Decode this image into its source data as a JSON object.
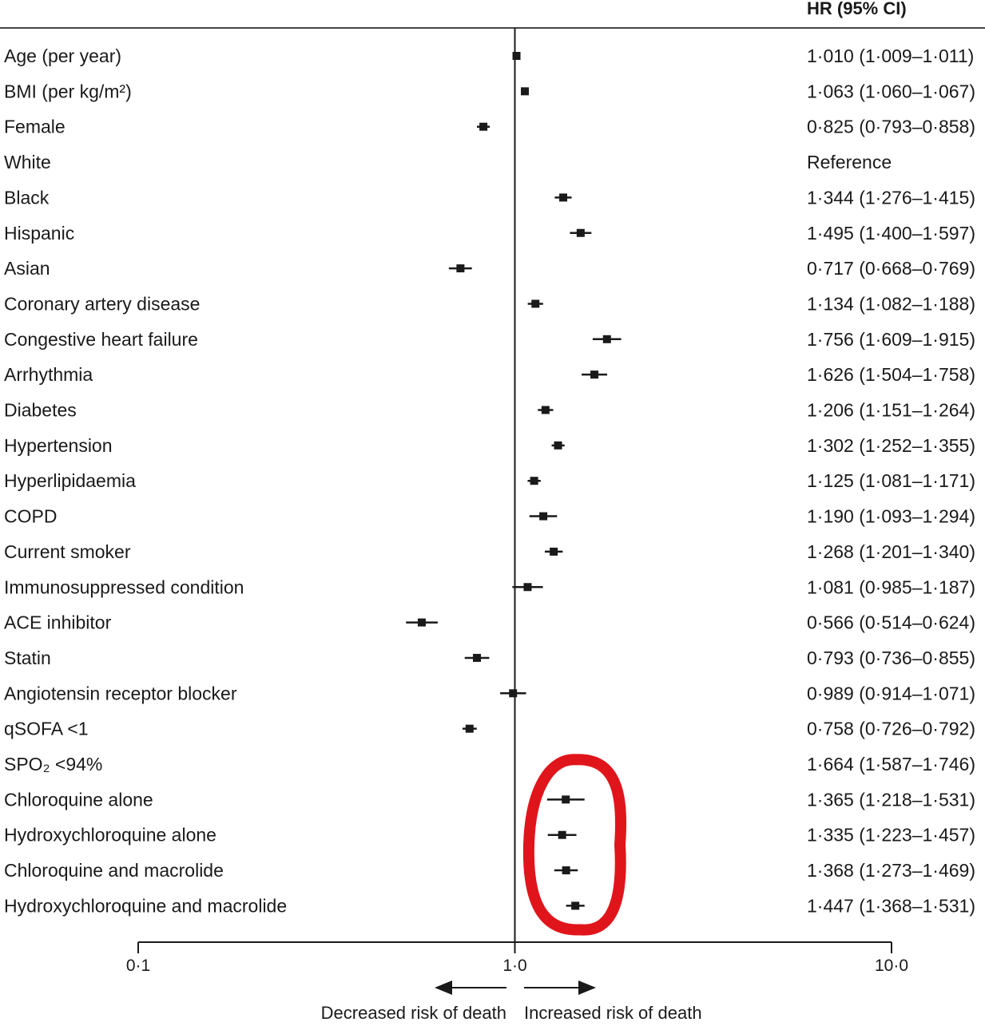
{
  "chart_data": {
    "type": "forest",
    "scale": "log",
    "xlim": [
      0.1,
      10.0
    ],
    "reference_value": 1.0,
    "value_column_header": "HR (95% CI)",
    "ticks": [
      {
        "value": 0.1,
        "label": "0·1"
      },
      {
        "value": 1.0,
        "label": "1·0"
      },
      {
        "value": 10.0,
        "label": "10·0"
      }
    ],
    "direction_labels": {
      "left": "Decreased risk of death",
      "right": "Increased risk of death"
    },
    "rows": [
      {
        "label": "Age (per year)",
        "hr": 1.01,
        "lo": 1.009,
        "hi": 1.011,
        "text": "1·010 (1·009–1·011)"
      },
      {
        "label": "BMI (per kg/m²)",
        "hr": 1.063,
        "lo": 1.06,
        "hi": 1.067,
        "text": "1·063 (1·060–1·067)"
      },
      {
        "label": "Female",
        "hr": 0.825,
        "lo": 0.793,
        "hi": 0.858,
        "text": "0·825 (0·793–0·858)"
      },
      {
        "label": "White",
        "hr": null,
        "lo": null,
        "hi": null,
        "text": "Reference"
      },
      {
        "label": "Black",
        "hr": 1.344,
        "lo": 1.276,
        "hi": 1.415,
        "text": "1·344 (1·276–1·415)"
      },
      {
        "label": "Hispanic",
        "hr": 1.495,
        "lo": 1.4,
        "hi": 1.597,
        "text": "1·495 (1·400–1·597)"
      },
      {
        "label": "Asian",
        "hr": 0.717,
        "lo": 0.668,
        "hi": 0.769,
        "text": "0·717 (0·668–0·769)"
      },
      {
        "label": "Coronary artery disease",
        "hr": 1.134,
        "lo": 1.082,
        "hi": 1.188,
        "text": "1·134 (1·082–1·188)"
      },
      {
        "label": "Congestive heart failure",
        "hr": 1.756,
        "lo": 1.609,
        "hi": 1.915,
        "text": "1·756 (1·609–1·915)"
      },
      {
        "label": "Arrhythmia",
        "hr": 1.626,
        "lo": 1.504,
        "hi": 1.758,
        "text": "1·626 (1·504–1·758)"
      },
      {
        "label": "Diabetes",
        "hr": 1.206,
        "lo": 1.151,
        "hi": 1.264,
        "text": "1·206 (1·151–1·264)"
      },
      {
        "label": "Hypertension",
        "hr": 1.302,
        "lo": 1.252,
        "hi": 1.355,
        "text": "1·302 (1·252–1·355)"
      },
      {
        "label": "Hyperlipidaemia",
        "hr": 1.125,
        "lo": 1.081,
        "hi": 1.171,
        "text": "1·125 (1·081–1·171)"
      },
      {
        "label": "COPD",
        "hr": 1.19,
        "lo": 1.093,
        "hi": 1.294,
        "text": "1·190 (1·093–1·294)"
      },
      {
        "label": "Current smoker",
        "hr": 1.268,
        "lo": 1.201,
        "hi": 1.34,
        "text": "1·268 (1·201–1·340)"
      },
      {
        "label": "Immunosuppressed condition",
        "hr": 1.081,
        "lo": 0.985,
        "hi": 1.187,
        "text": "1·081 (0·985–1·187)"
      },
      {
        "label": "ACE inhibitor",
        "hr": 0.566,
        "lo": 0.514,
        "hi": 0.624,
        "text": "0·566 (0·514–0·624)"
      },
      {
        "label": "Statin",
        "hr": 0.793,
        "lo": 0.736,
        "hi": 0.855,
        "text": "0·793 (0·736–0·855)"
      },
      {
        "label": "Angiotensin receptor blocker",
        "hr": 0.989,
        "lo": 0.914,
        "hi": 1.071,
        "text": "0·989 (0·914–1·071)"
      },
      {
        "label": "qSOFA <1",
        "hr": 0.758,
        "lo": 0.726,
        "hi": 0.792,
        "text": "0·758 (0·726–0·792)"
      },
      {
        "label": "SPO₂ <94%",
        "hr": 1.664,
        "lo": 1.587,
        "hi": 1.746,
        "text": "1·664 (1·587–1·746)"
      },
      {
        "label": "Chloroquine alone",
        "hr": 1.365,
        "lo": 1.218,
        "hi": 1.531,
        "text": "1·365 (1·218–1·531)"
      },
      {
        "label": "Hydroxychloroquine alone",
        "hr": 1.335,
        "lo": 1.223,
        "hi": 1.457,
        "text": "1·335 (1·223–1·457)"
      },
      {
        "label": "Chloroquine and macrolide",
        "hr": 1.368,
        "lo": 1.273,
        "hi": 1.469,
        "text": "1·368 (1·273–1·469)"
      },
      {
        "label": "Hydroxychloroquine and macrolide",
        "hr": 1.447,
        "lo": 1.368,
        "hi": 1.531,
        "text": "1·447 (1·368–1·531)"
      }
    ],
    "annotation": {
      "shape": "red-oval-highlight",
      "color": "#e0151b",
      "highlighted_rows": [
        21,
        22,
        23,
        24
      ]
    },
    "colors": {
      "ink": "#1a1a1a",
      "highlight": "#e0151b"
    }
  }
}
